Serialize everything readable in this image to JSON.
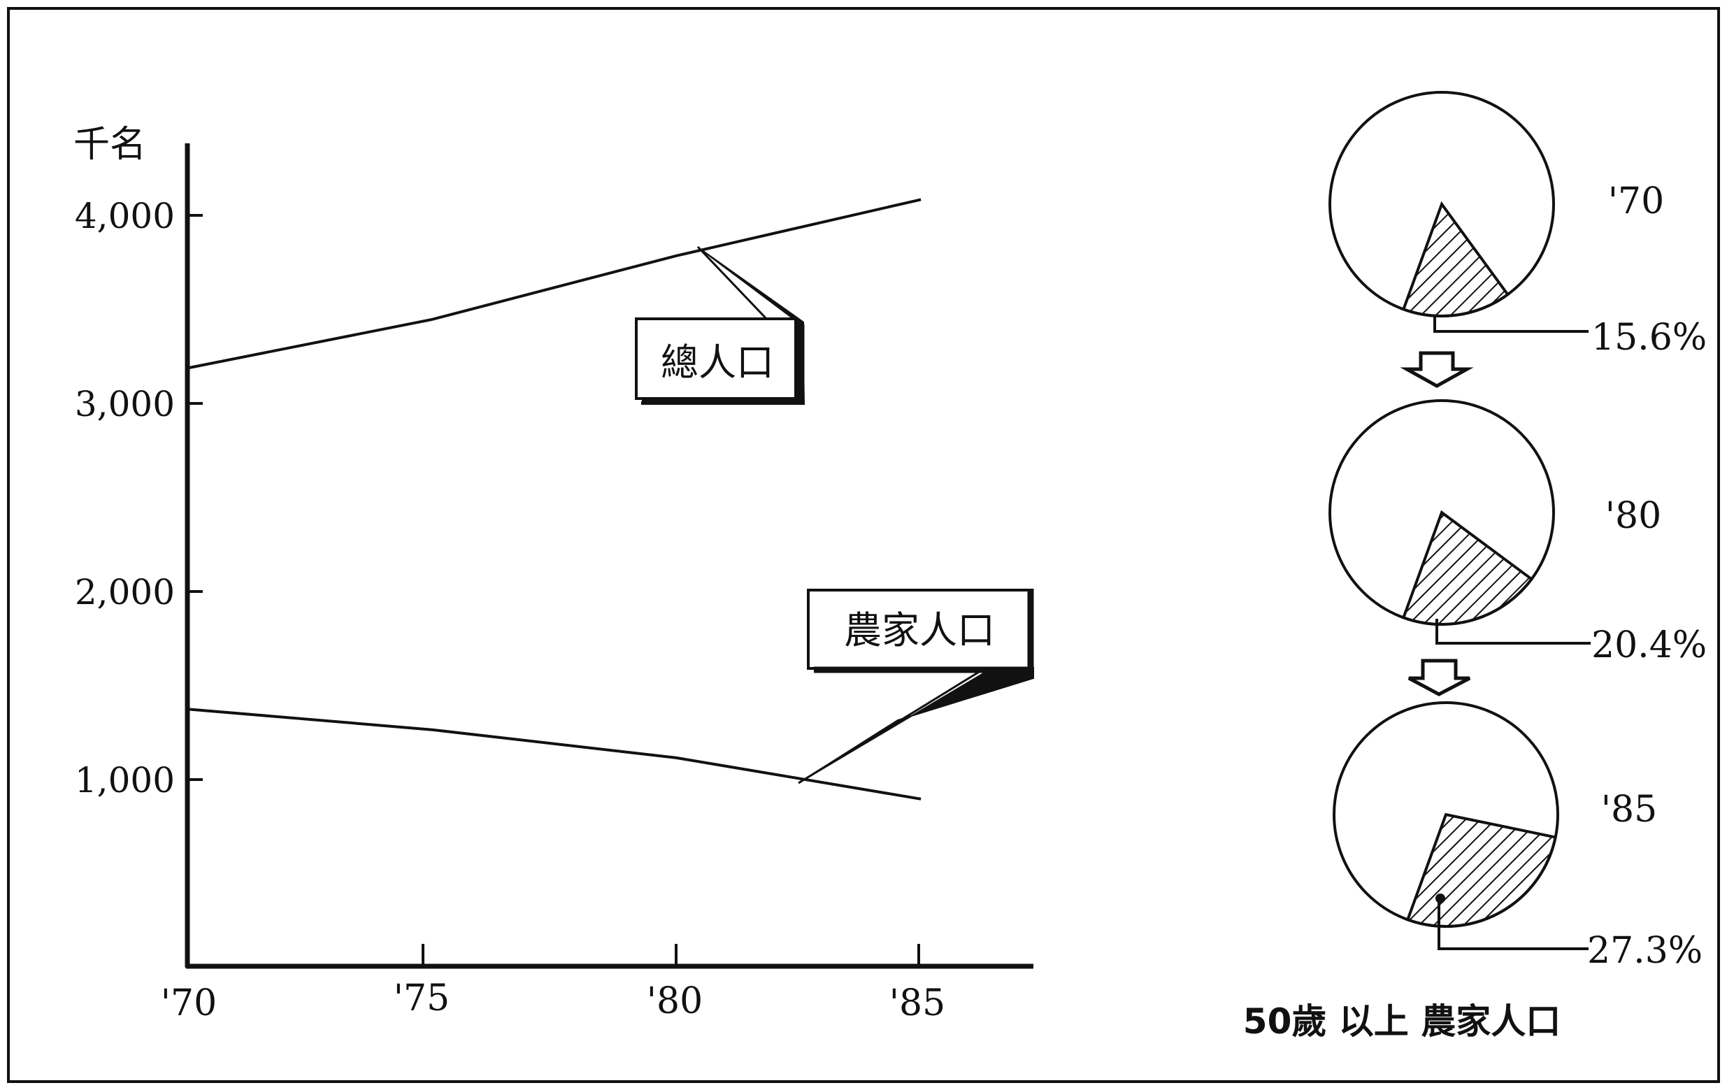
{
  "chart_data": [
    {
      "type": "line",
      "ylabel": "千名",
      "categories": [
        "'70",
        "'75",
        "'80",
        "'85"
      ],
      "x": [
        1970,
        1975,
        1980,
        1985
      ],
      "xlim": [
        1970,
        1987.3
      ],
      "ylim": [
        0,
        4400
      ],
      "yticks": [
        1000,
        2000,
        3000,
        4000
      ],
      "ytick_labels": [
        "1,000",
        "2,000",
        "3,000",
        "4,000"
      ],
      "series": [
        {
          "name": "總人口",
          "points": [
            [
              1970,
              3200
            ],
            [
              1975,
              3460
            ],
            [
              1980,
              3800
            ],
            [
              1985,
              4100
            ]
          ]
        },
        {
          "name": "農家人口",
          "points": [
            [
              1970,
              1380
            ],
            [
              1975,
              1270
            ],
            [
              1980,
              1120
            ],
            [
              1985,
              900
            ]
          ]
        }
      ]
    },
    {
      "type": "pie",
      "title": "50歲 以上 農家人口",
      "categories": [
        "'70",
        "'80",
        "'85"
      ],
      "values": [
        15.6,
        20.4,
        27.3
      ],
      "value_labels": [
        "15.6%",
        "20.4%",
        "27.3%"
      ]
    }
  ],
  "colors": {
    "ink": "#111111",
    "background": "#ffffff"
  }
}
